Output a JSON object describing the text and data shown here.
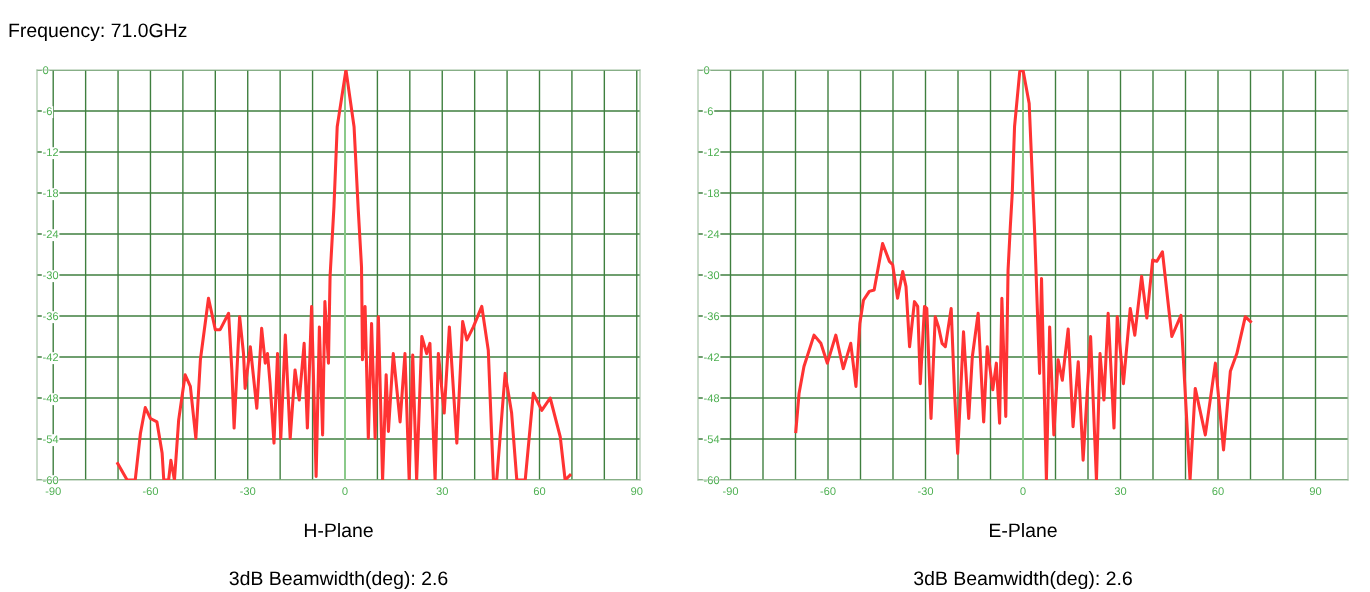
{
  "chart_data": [
    {
      "type": "line",
      "xlabel": "H-Plane",
      "annotations": [
        "Frequency: 71.0GHz",
        "3dB Beamwidth(deg): 2.6"
      ],
      "x": [
        -70.1,
        -67.2,
        -64.7,
        -63.1,
        -61.6,
        -60.0,
        -58.0,
        -56.4,
        -55.9,
        -54.4,
        -53.7,
        -52.6,
        -51.3,
        -49.3,
        -47.7,
        -46.0,
        -44.6,
        -42.1,
        -40.0,
        -38.5,
        -35.9,
        -34.9,
        -34.2,
        -32.5,
        -31.3,
        -30.8,
        -29.2,
        -27.2,
        -25.7,
        -24.6,
        -23.9,
        -23.1,
        -21.9,
        -20.8,
        -19.8,
        -18.4,
        -16.9,
        -15.4,
        -14.1,
        -12.6,
        -11.6,
        -10.3,
        -8.9,
        -7.9,
        -6.9,
        -6.2,
        -5.1,
        -4.6,
        -3.4,
        -2.4,
        0.3,
        2.8,
        4.1,
        5.1,
        5.4,
        6.2,
        7.2,
        8.2,
        9.3,
        10.3,
        11.6,
        12.7,
        13.4,
        14.9,
        17.0,
        18.5,
        19.8,
        20.9,
        22.1,
        23.7,
        25.2,
        26.2,
        27.8,
        28.8,
        30.6,
        32.2,
        34.5,
        36.3,
        37.6,
        39.6,
        42.2,
        44.2,
        45.8,
        46.8,
        49.4,
        51.4,
        53.0,
        55.6,
        58.1,
        60.7,
        63.3,
        66.4,
        67.9,
        69.4
      ],
      "series": [
        {
          "color": "#ff3333",
          "values": [
            -57.6,
            -60,
            -60,
            -53.2,
            -49.4,
            -51.0,
            -51.5,
            -56.1,
            -60,
            -60,
            -57.1,
            -60,
            -51.2,
            -44.6,
            -46.3,
            -53.9,
            -42.4,
            -33.4,
            -38.0,
            -38.0,
            -35.6,
            -43.9,
            -52.4,
            -36.1,
            -41.5,
            -46.6,
            -40.5,
            -49.5,
            -37.8,
            -42.9,
            -41.5,
            -45.9,
            -54.6,
            -41.5,
            -53.9,
            -38.8,
            -53.9,
            -43.9,
            -48.3,
            -40.0,
            -52.4,
            -34.6,
            -59.5,
            -37.6,
            -53.4,
            -33.9,
            -42.9,
            -30.2,
            -20.0,
            -8.3,
            0,
            -8.3,
            -20.5,
            -28.8,
            -42.4,
            -34.6,
            -53.9,
            -37.1,
            -53.9,
            -36.1,
            -60,
            -44.6,
            -52.9,
            -41.5,
            -51.5,
            -41.5,
            -60,
            -41.7,
            -60,
            -39.0,
            -41.5,
            -40.0,
            -60,
            -41.5,
            -50.2,
            -37.6,
            -54.6,
            -36.8,
            -39.5,
            -37.6,
            -34.6,
            -41.0,
            -60,
            -60,
            -44.4,
            -50.2,
            -60,
            -60,
            -47.3,
            -49.8,
            -48.0,
            -53.7,
            -60,
            -59.3
          ]
        }
      ],
      "xlim": [
        -95,
        91
      ],
      "xticks": [
        -90,
        {
          "value": -80,
          "label": null
        },
        {
          "value": -70,
          "label": null
        },
        -60,
        {
          "value": -50,
          "label": null
        },
        {
          "value": -40,
          "label": null
        },
        -30,
        {
          "value": -20,
          "label": null
        },
        {
          "value": -10,
          "label": null
        },
        0,
        {
          "value": 10,
          "label": null
        },
        {
          "value": 20,
          "label": null
        },
        30,
        {
          "value": 40,
          "label": null
        },
        {
          "value": 50,
          "label": null
        },
        60,
        {
          "value": 70,
          "label": null
        },
        {
          "value": 80,
          "label": null
        },
        90
      ],
      "ylim": [
        -60,
        0
      ],
      "yticks": [
        0,
        -6,
        -12,
        -18,
        -24,
        -30,
        -36,
        -42,
        -48,
        -54,
        -60
      ],
      "grid": true,
      "ref_lines": [
        {
          "axis": "x",
          "value": 0,
          "color": "#8fd28f"
        }
      ]
    },
    {
      "type": "line",
      "xlabel": "E-Plane",
      "annotations": [
        "3dB Beamwidth(deg): 2.6"
      ],
      "x": [
        -69.9,
        -68.9,
        -67.4,
        -64.3,
        -62.2,
        -60.2,
        -57.6,
        -55.3,
        -53.0,
        -51.4,
        -50.2,
        -49.1,
        -47.3,
        -45.8,
        -43.2,
        -41.1,
        -40.1,
        -38.6,
        -37.0,
        -36.0,
        -34.9,
        -33.4,
        -32.4,
        -31.6,
        -30.3,
        -29.6,
        -28.3,
        -27.0,
        -26.0,
        -24.9,
        -23.9,
        -22.1,
        -21.1,
        -20.1,
        -18.3,
        -16.7,
        -15.6,
        -13.8,
        -12.1,
        -11.0,
        -9.3,
        -8.2,
        -7.2,
        -6.5,
        -5.3,
        -4.6,
        -3.9,
        -3.3,
        -2.6,
        -1.0,
        0,
        1.9,
        3.6,
        5.1,
        5.7,
        7.2,
        8.2,
        9.5,
        10.8,
        12.1,
        13.9,
        15.4,
        17.0,
        18.5,
        20.8,
        22.6,
        23.7,
        24.9,
        26.2,
        28.0,
        29.0,
        30.9,
        33.0,
        34.4,
        36.5,
        38.1,
        39.9,
        41.2,
        42.9,
        45.8,
        48.6,
        51.4,
        53.0,
        56.1,
        59.2,
        61.7,
        63.8,
        65.8,
        68.4,
        70.0
      ],
      "series": [
        {
          "color": "#ff3333",
          "values": [
            -52.9,
            -47.3,
            -43.4,
            -38.8,
            -40.0,
            -42.9,
            -38.8,
            -43.7,
            -40.0,
            -46.3,
            -37.1,
            -33.7,
            -32.4,
            -32.2,
            -25.4,
            -28.0,
            -28.5,
            -33.4,
            -29.5,
            -31.7,
            -40.5,
            -33.9,
            -34.6,
            -45.9,
            -34.6,
            -34.9,
            -51.0,
            -36.1,
            -37.6,
            -40.0,
            -40.5,
            -34.9,
            -46.8,
            -56.1,
            -38.3,
            -51.0,
            -42.0,
            -35.6,
            -51.5,
            -40.5,
            -46.8,
            -42.9,
            -51.7,
            -33.4,
            -50.7,
            -29.3,
            -22.9,
            -18.0,
            -8.3,
            -0.2,
            0,
            -4.9,
            -23.9,
            -44.4,
            -30.5,
            -60,
            -37.6,
            -53.4,
            -42.4,
            -45.4,
            -37.9,
            -52.2,
            -42.7,
            -57.1,
            -39.0,
            -60,
            -41.5,
            -48.3,
            -35.6,
            -52.4,
            -36.1,
            -45.9,
            -34.9,
            -38.8,
            -30.2,
            -36.3,
            -27.8,
            -28.0,
            -26.6,
            -39.0,
            -35.9,
            -60,
            -46.6,
            -53.4,
            -42.9,
            -55.6,
            -44.1,
            -41.5,
            -36.1,
            -36.8
          ]
        }
      ],
      "xlim": [
        -100,
        100
      ],
      "xticks": [
        -90,
        {
          "value": -80,
          "label": null
        },
        {
          "value": -70,
          "label": null
        },
        -60,
        {
          "value": -50,
          "label": null
        },
        {
          "value": -40,
          "label": null
        },
        -30,
        {
          "value": -20,
          "label": null
        },
        {
          "value": -10,
          "label": null
        },
        0,
        {
          "value": 10,
          "label": null
        },
        {
          "value": 20,
          "label": null
        },
        30,
        {
          "value": 40,
          "label": null
        },
        {
          "value": 50,
          "label": null
        },
        60,
        {
          "value": 70,
          "label": null
        },
        {
          "value": 80,
          "label": null
        },
        90
      ],
      "ylim": [
        -60,
        0
      ],
      "yticks": [
        0,
        -6,
        -12,
        -18,
        -24,
        -30,
        -36,
        -42,
        -48,
        -54,
        -60
      ],
      "grid": true,
      "ref_lines": [
        {
          "axis": "x",
          "value": 0,
          "color": "#8fd28f"
        }
      ]
    }
  ]
}
